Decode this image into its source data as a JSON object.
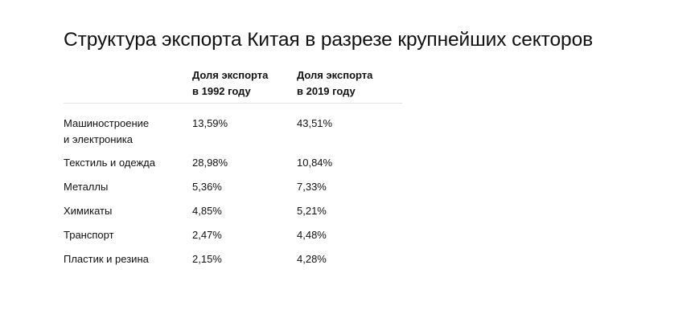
{
  "chart_data": {
    "type": "table",
    "title": "Структура экспорта Китая в разрезе крупнейших секторов",
    "columns": [
      {
        "line1": "Доля экспорта",
        "line2": "в 1992 году"
      },
      {
        "line1": "Доля экспорта",
        "line2": "в 2019 году"
      }
    ],
    "rows": [
      {
        "line1": "Машиностроение",
        "line2": "и электроника",
        "v1992": "13,59%",
        "v2019": "43,51%"
      },
      {
        "line1": "Текстиль и одежда",
        "line2": "",
        "v1992": "28,98%",
        "v2019": "10,84%"
      },
      {
        "line1": "Металлы",
        "line2": "",
        "v1992": "5,36%",
        "v2019": "7,33%"
      },
      {
        "line1": "Химикаты",
        "line2": "",
        "v1992": "4,85%",
        "v2019": "5,21%"
      },
      {
        "line1": "Транспорт",
        "line2": "",
        "v1992": "2,47%",
        "v2019": "4,48%"
      },
      {
        "line1": "Пластик и резина",
        "line2": "",
        "v1992": "2,15%",
        "v2019": "4,28%"
      }
    ]
  }
}
